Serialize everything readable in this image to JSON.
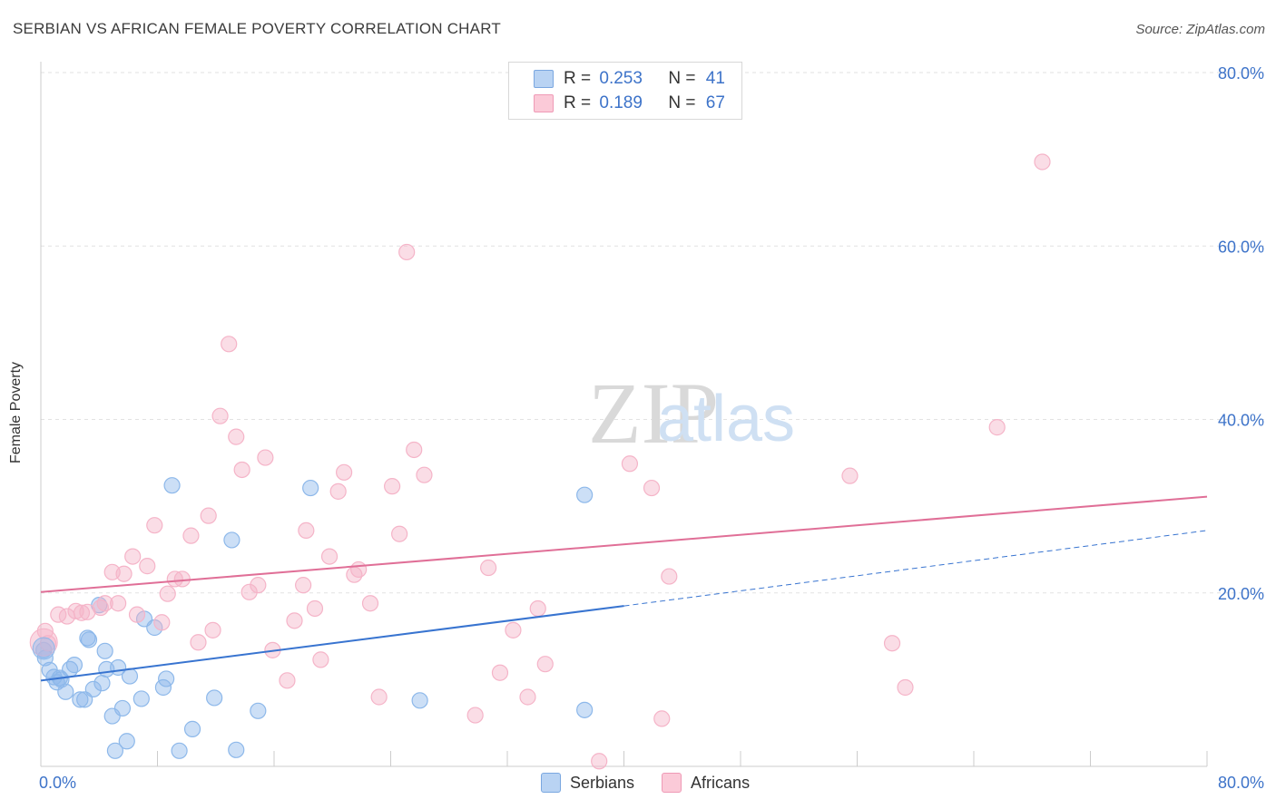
{
  "title": "SERBIAN VS AFRICAN FEMALE POVERTY CORRELATION CHART",
  "source": "Source: ZipAtlas.com",
  "watermark": {
    "zip": "ZIP",
    "atlas": "atlas"
  },
  "legend": {
    "rows": [
      {
        "r_label": "R =",
        "r_value": "0.253",
        "n_label": "N =",
        "n_value": "41"
      },
      {
        "r_label": "R =",
        "r_value": "0.189",
        "n_label": "N =",
        "n_value": "67"
      }
    ]
  },
  "chart_data": {
    "type": "scatter",
    "title": "SERBIAN VS AFRICAN FEMALE POVERTY CORRELATION CHART",
    "xlabel": "",
    "ylabel": "Female Poverty",
    "xlim": [
      0,
      80
    ],
    "ylim": [
      0,
      80
    ],
    "x_tick_labels": [
      "0.0%",
      "80.0%"
    ],
    "y_tick_labels": [
      "20.0%",
      "40.0%",
      "60.0%",
      "80.0%"
    ],
    "y_ticks": [
      20,
      40,
      60,
      80
    ],
    "grid": true,
    "legend_position": "bottom-center",
    "series": [
      {
        "name": "Serbians",
        "color": "#8db8ea",
        "line_color": "#3874d0",
        "r": 0.253,
        "n": 41,
        "trend": {
          "x0": 0,
          "y0": 9.9,
          "x1": 40,
          "y1": 18.5,
          "dash_to_x": 80,
          "dash_to_y": 27.2
        },
        "points": [
          [
            0.3,
            12.5
          ],
          [
            0.6,
            11.1
          ],
          [
            0.9,
            10.3
          ],
          [
            1.1,
            9.7
          ],
          [
            1.4,
            10.0
          ],
          [
            1.7,
            8.6
          ],
          [
            2.0,
            11.2
          ],
          [
            2.3,
            11.7
          ],
          [
            2.7,
            7.7
          ],
          [
            3.0,
            7.7
          ],
          [
            3.2,
            14.8
          ],
          [
            3.3,
            14.6
          ],
          [
            3.6,
            8.9
          ],
          [
            4.0,
            18.6
          ],
          [
            4.2,
            9.6
          ],
          [
            4.4,
            13.3
          ],
          [
            4.5,
            11.2
          ],
          [
            4.9,
            5.8
          ],
          [
            5.1,
            1.8
          ],
          [
            5.3,
            11.4
          ],
          [
            5.6,
            6.7
          ],
          [
            5.9,
            2.9
          ],
          [
            6.1,
            10.4
          ],
          [
            6.9,
            7.8
          ],
          [
            7.1,
            17.0
          ],
          [
            7.8,
            16.0
          ],
          [
            8.4,
            9.1
          ],
          [
            8.6,
            10.1
          ],
          [
            9.0,
            32.4
          ],
          [
            9.5,
            1.8
          ],
          [
            10.4,
            4.3
          ],
          [
            11.9,
            7.9
          ],
          [
            13.1,
            26.1
          ],
          [
            13.4,
            1.9
          ],
          [
            14.9,
            6.4
          ],
          [
            18.5,
            32.1
          ],
          [
            26.0,
            7.6
          ],
          [
            37.3,
            31.3
          ],
          [
            37.3,
            6.5
          ],
          [
            0.2,
            13.4
          ],
          [
            1.3,
            10.2
          ]
        ]
      },
      {
        "name": "Africans",
        "color": "#f5b4c8",
        "line_color": "#e06f97",
        "r": 0.189,
        "n": 67,
        "trend": {
          "x0": 0,
          "y0": 20.1,
          "x1": 80,
          "y1": 31.1
        },
        "points": [
          [
            0.3,
            15.6
          ],
          [
            0.5,
            14.2
          ],
          [
            1.2,
            17.5
          ],
          [
            1.8,
            17.3
          ],
          [
            2.4,
            17.9
          ],
          [
            2.8,
            17.7
          ],
          [
            3.2,
            17.8
          ],
          [
            4.1,
            18.3
          ],
          [
            4.4,
            18.8
          ],
          [
            4.9,
            22.4
          ],
          [
            5.3,
            18.8
          ],
          [
            5.7,
            22.2
          ],
          [
            6.3,
            24.2
          ],
          [
            6.6,
            17.5
          ],
          [
            7.3,
            23.1
          ],
          [
            7.8,
            27.8
          ],
          [
            8.3,
            16.6
          ],
          [
            8.7,
            19.9
          ],
          [
            9.2,
            21.6
          ],
          [
            9.7,
            21.6
          ],
          [
            10.3,
            26.6
          ],
          [
            10.8,
            14.3
          ],
          [
            11.5,
            28.9
          ],
          [
            11.8,
            15.7
          ],
          [
            12.3,
            40.4
          ],
          [
            12.9,
            48.7
          ],
          [
            13.4,
            38.0
          ],
          [
            13.8,
            34.2
          ],
          [
            14.3,
            20.1
          ],
          [
            14.9,
            20.9
          ],
          [
            15.4,
            35.6
          ],
          [
            15.9,
            13.4
          ],
          [
            16.9,
            9.9
          ],
          [
            17.4,
            16.8
          ],
          [
            18.0,
            20.9
          ],
          [
            18.2,
            27.2
          ],
          [
            18.8,
            18.2
          ],
          [
            19.2,
            12.3
          ],
          [
            19.8,
            24.2
          ],
          [
            20.4,
            31.7
          ],
          [
            20.8,
            33.9
          ],
          [
            21.5,
            22.1
          ],
          [
            21.8,
            22.7
          ],
          [
            22.6,
            18.8
          ],
          [
            23.2,
            8.0
          ],
          [
            24.1,
            32.3
          ],
          [
            24.6,
            26.8
          ],
          [
            25.1,
            59.3
          ],
          [
            25.6,
            36.5
          ],
          [
            26.3,
            33.6
          ],
          [
            29.8,
            5.9
          ],
          [
            30.7,
            22.9
          ],
          [
            31.5,
            10.8
          ],
          [
            32.4,
            15.7
          ],
          [
            33.4,
            8.0
          ],
          [
            34.1,
            18.2
          ],
          [
            34.6,
            11.8
          ],
          [
            38.3,
            0.6
          ],
          [
            40.4,
            34.9
          ],
          [
            41.9,
            32.1
          ],
          [
            42.6,
            5.5
          ],
          [
            43.1,
            21.9
          ],
          [
            55.5,
            33.5
          ],
          [
            58.4,
            14.2
          ],
          [
            59.3,
            9.1
          ],
          [
            65.6,
            39.1
          ],
          [
            68.7,
            69.7
          ]
        ]
      }
    ]
  },
  "bottom_legend": [
    "Serbians",
    "Africans"
  ]
}
